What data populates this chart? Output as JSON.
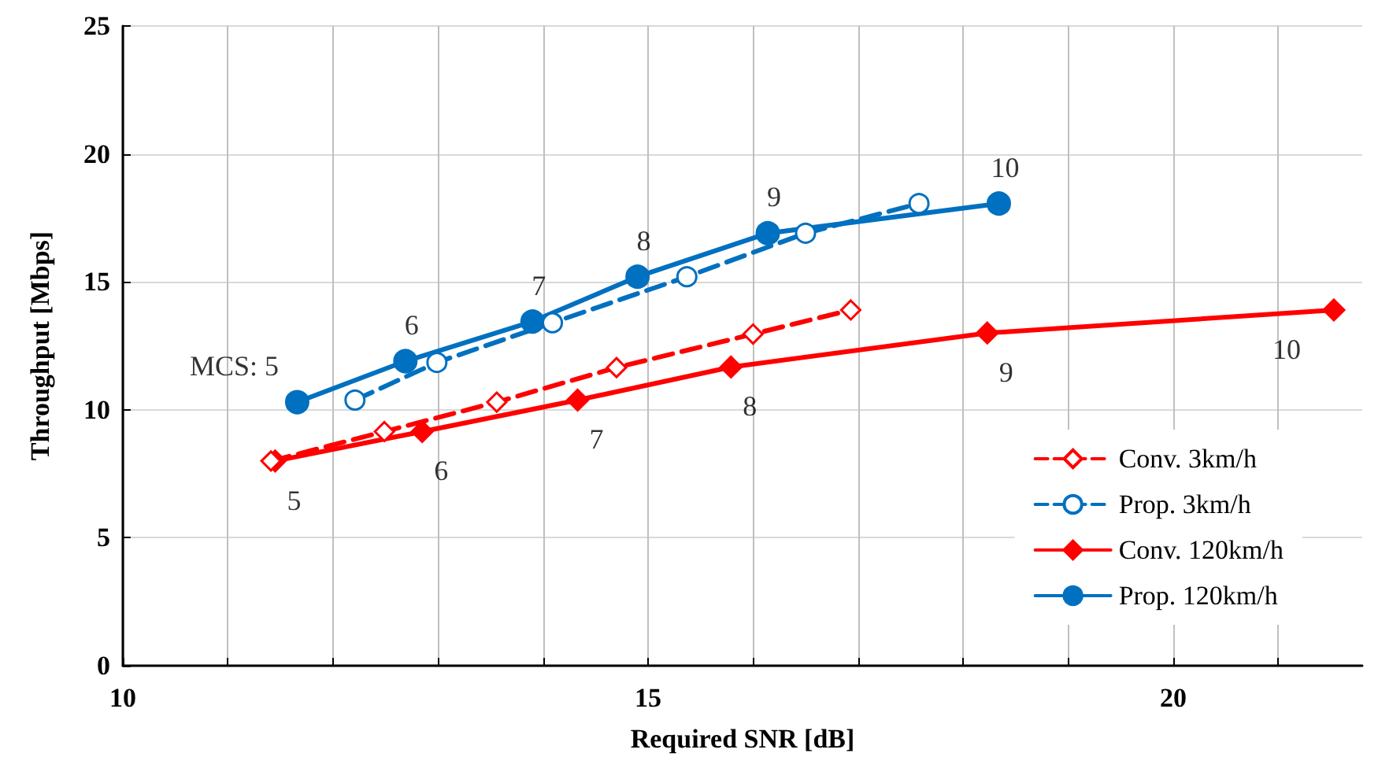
{
  "chart_data": {
    "type": "line",
    "xlabel": "Required SNR [dB]",
    "ylabel": "Throughput [Mbps]",
    "xlim": [
      10,
      21.8
    ],
    "xticks": [
      10,
      {
        "value": 11,
        "label": null
      },
      {
        "value": 12,
        "label": null
      },
      {
        "value": 13,
        "label": null
      },
      {
        "value": 14,
        "label": null
      },
      15,
      {
        "value": 16,
        "label": null
      },
      {
        "value": 17,
        "label": null
      },
      {
        "value": 18,
        "label": null
      },
      {
        "value": 19,
        "label": null
      },
      20,
      {
        "value": 21,
        "label": null
      }
    ],
    "ylim": [
      0,
      25
    ],
    "yticks": [
      0,
      5,
      10,
      15,
      20,
      25
    ],
    "grid": true,
    "legend": "bottom right",
    "series": [
      {
        "name": "Conv. 3km/h",
        "color": "#ff0000",
        "marker": "diamond",
        "line_style": "dashed",
        "x": [
          11.41,
          12.49,
          13.56,
          14.7,
          16.0,
          16.93
        ],
        "values": [
          8.0,
          9.15,
          10.3,
          11.65,
          12.96,
          13.9
        ]
      },
      {
        "name": "Prop. 3km/h",
        "color": "#0070c0",
        "marker": "circle",
        "line_style": "dashed",
        "x": [
          12.21,
          12.99,
          14.09,
          15.37,
          16.5,
          17.58
        ],
        "values": [
          10.38,
          11.85,
          13.4,
          15.2,
          16.9,
          18.06
        ]
      },
      {
        "name": "Conv. 120km/h",
        "color": "#ff0000",
        "marker": "diamond",
        "line_style": "solid",
        "x": [
          11.45,
          12.85,
          14.33,
          15.79,
          18.23,
          21.53
        ],
        "values": [
          8.0,
          9.15,
          10.38,
          11.67,
          13.0,
          13.9
        ]
      },
      {
        "name": "Prop. 120km/h",
        "color": "#0070c0",
        "marker": "circle",
        "line_style": "solid",
        "x": [
          11.66,
          12.69,
          13.9,
          14.9,
          16.14,
          18.34
        ],
        "values": [
          10.3,
          11.9,
          13.45,
          15.2,
          16.9,
          18.06
        ]
      }
    ],
    "annotations": [
      {
        "text": "MCS: 5",
        "x": 11.66,
        "y": 10.3
      },
      {
        "text": "6",
        "x": 12.69,
        "y": 11.9
      },
      {
        "text": "7",
        "x": 13.9,
        "y": 13.45
      },
      {
        "text": "8",
        "x": 14.9,
        "y": 15.2
      },
      {
        "text": "9",
        "x": 16.14,
        "y": 16.9
      },
      {
        "text": "10",
        "x": 18.34,
        "y": 18.06
      },
      {
        "text": "5",
        "x": 11.45,
        "y": 8.0
      },
      {
        "text": "6",
        "x": 12.85,
        "y": 9.15
      },
      {
        "text": "7",
        "x": 14.33,
        "y": 10.38
      },
      {
        "text": "8",
        "x": 15.79,
        "y": 11.67
      },
      {
        "text": "9",
        "x": 18.23,
        "y": 13.0
      },
      {
        "text": "10",
        "x": 21.53,
        "y": 13.9
      }
    ]
  }
}
